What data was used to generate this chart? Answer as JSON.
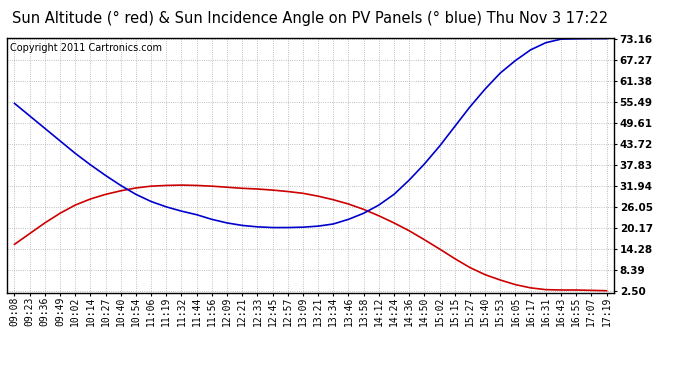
{
  "title": "Sun Altitude (° red) & Sun Incidence Angle on PV Panels (° blue) Thu Nov 3 17:22",
  "copyright": "Copyright 2011 Cartronics.com",
  "x_labels": [
    "09:08",
    "09:23",
    "09:36",
    "09:49",
    "10:02",
    "10:14",
    "10:27",
    "10:40",
    "10:54",
    "11:06",
    "11:19",
    "11:32",
    "11:44",
    "11:56",
    "12:09",
    "12:21",
    "12:33",
    "12:45",
    "12:57",
    "13:09",
    "13:21",
    "13:34",
    "13:46",
    "13:58",
    "14:12",
    "14:24",
    "14:36",
    "14:50",
    "15:02",
    "15:15",
    "15:27",
    "15:40",
    "15:53",
    "16:05",
    "16:17",
    "16:31",
    "16:43",
    "16:55",
    "17:07",
    "17:19"
  ],
  "y_ticks": [
    2.5,
    8.39,
    14.28,
    20.17,
    26.05,
    31.94,
    37.83,
    43.72,
    49.61,
    55.49,
    61.38,
    67.27,
    73.16
  ],
  "y_min": 2.5,
  "y_max": 73.16,
  "red_data": [
    15.5,
    18.5,
    21.5,
    24.2,
    26.5,
    28.2,
    29.5,
    30.5,
    31.3,
    31.8,
    32.0,
    32.1,
    32.0,
    31.8,
    31.5,
    31.2,
    31.0,
    30.7,
    30.3,
    29.8,
    29.0,
    28.0,
    26.8,
    25.3,
    23.5,
    21.5,
    19.3,
    16.8,
    14.2,
    11.5,
    9.0,
    7.0,
    5.5,
    4.2,
    3.3,
    2.8,
    2.7,
    2.7,
    2.6,
    2.5
  ],
  "blue_data": [
    55.0,
    51.5,
    48.0,
    44.5,
    41.0,
    37.8,
    34.8,
    32.0,
    29.5,
    27.5,
    26.0,
    24.8,
    23.8,
    22.5,
    21.5,
    20.8,
    20.4,
    20.2,
    20.2,
    20.3,
    20.6,
    21.2,
    22.5,
    24.2,
    26.5,
    29.5,
    33.5,
    38.0,
    43.0,
    48.5,
    54.0,
    59.0,
    63.5,
    67.0,
    70.0,
    72.0,
    73.0,
    73.1,
    73.15,
    73.16
  ],
  "bg_color": "#ffffff",
  "plot_bg_color": "#ffffff",
  "grid_color": "#aaaaaa",
  "red_color": "#cc0000",
  "blue_color": "#0000cc",
  "title_fontsize": 10.5,
  "copyright_fontsize": 7,
  "tick_fontsize": 7,
  "ytick_fontsize": 7.5
}
